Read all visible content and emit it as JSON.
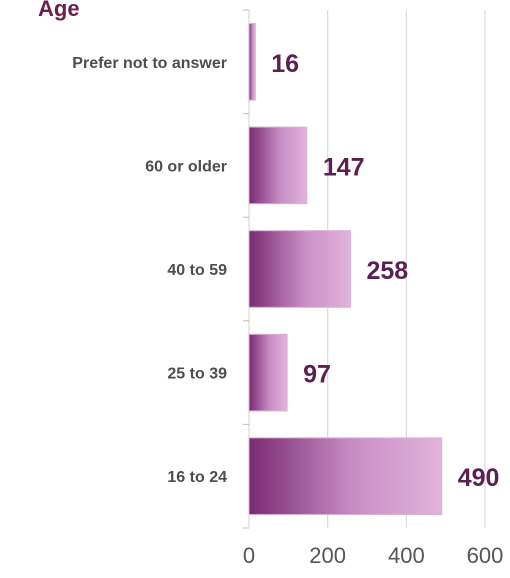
{
  "chart_data": {
    "type": "bar",
    "orientation": "horizontal",
    "title": "Age",
    "categories": [
      "Prefer not to answer",
      "60 or older",
      "40 to 59",
      "25 to 39",
      "16 to 24"
    ],
    "values": [
      16,
      147,
      258,
      97,
      490
    ],
    "xlim": [
      0,
      600
    ],
    "xticks": [
      0,
      200,
      400,
      600
    ],
    "xlabel": "",
    "ylabel": "",
    "grid": true,
    "colors": {
      "bar_gradient_start": "#7a2a73",
      "bar_gradient_end": "#e2b3dc",
      "title": "#6b1f4e",
      "value_label": "#5b1f52",
      "category_label": "#4d4d4d"
    }
  }
}
